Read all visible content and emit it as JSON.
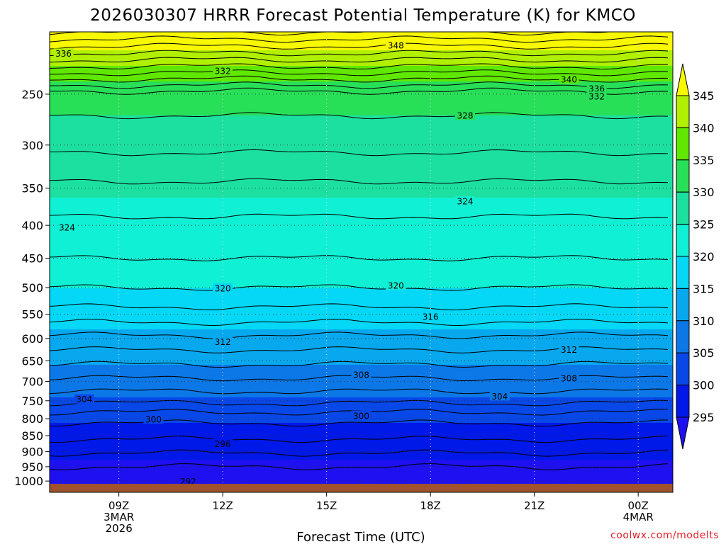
{
  "chart_data": {
    "type": "heatmap",
    "title": "2026030307 HRRR Forecast Potential Temperature (K) for KMCO",
    "xlabel": "Forecast Time (UTC)",
    "ylabel": "",
    "credit": "coolwx.com/modelts",
    "x_hours_range": [
      7,
      25
    ],
    "y_pressure_levels": [
      250,
      300,
      350,
      400,
      450,
      500,
      550,
      600,
      650,
      700,
      750,
      800,
      850,
      900,
      950,
      1000
    ],
    "y_range_hPa": [
      200,
      1015
    ],
    "x_ticks": [
      {
        "hour": 9,
        "lines": [
          "09Z",
          "3MAR",
          "2026"
        ]
      },
      {
        "hour": 12,
        "lines": [
          "12Z"
        ]
      },
      {
        "hour": 15,
        "lines": [
          "15Z"
        ]
      },
      {
        "hour": 18,
        "lines": [
          "18Z"
        ]
      },
      {
        "hour": 21,
        "lines": [
          "21Z"
        ]
      },
      {
        "hour": 24,
        "lines": [
          "00Z",
          "4MAR"
        ]
      }
    ],
    "colorbar": {
      "levels": [
        295,
        300,
        305,
        310,
        315,
        320,
        325,
        330,
        335,
        340,
        345
      ],
      "colors": [
        "#1e10f0",
        "#0018e8",
        "#0848e8",
        "#0c78e8",
        "#08a8ee",
        "#04d8f6",
        "#10f0d4",
        "#1ce0a0",
        "#28e058",
        "#60e800",
        "#b0f000",
        "#f8f800"
      ]
    },
    "theta_profile": [
      {
        "p": 200,
        "theta": 350
      },
      {
        "p": 250,
        "theta": 331
      },
      {
        "p": 300,
        "theta": 328.5
      },
      {
        "p": 350,
        "theta": 325.5
      },
      {
        "p": 400,
        "theta": 323.5
      },
      {
        "p": 450,
        "theta": 322
      },
      {
        "p": 500,
        "theta": 320
      },
      {
        "p": 550,
        "theta": 317.2
      },
      {
        "p": 600,
        "theta": 313.5
      },
      {
        "p": 650,
        "theta": 310.5
      },
      {
        "p": 700,
        "theta": 307.5
      },
      {
        "p": 750,
        "theta": 304.5
      },
      {
        "p": 800,
        "theta": 300.5
      },
      {
        "p": 850,
        "theta": 298.5
      },
      {
        "p": 900,
        "theta": 296.2
      },
      {
        "p": 950,
        "theta": 294
      },
      {
        "p": 1000,
        "theta": 292.5
      }
    ],
    "contour_labels": [
      {
        "text": "348",
        "hour": 17.0,
        "p": 210
      },
      {
        "text": "336",
        "hour": 7.4,
        "p": 216
      },
      {
        "text": "332",
        "hour": 12.0,
        "p": 230
      },
      {
        "text": "340",
        "hour": 22.0,
        "p": 237
      },
      {
        "text": "336",
        "hour": 22.8,
        "p": 245
      },
      {
        "text": "332",
        "hour": 22.8,
        "p": 252
      },
      {
        "text": "328",
        "hour": 19.0,
        "p": 270
      },
      {
        "text": "324",
        "hour": 19.0,
        "p": 367
      },
      {
        "text": "324",
        "hour": 7.5,
        "p": 403
      },
      {
        "text": "320",
        "hour": 12.0,
        "p": 501
      },
      {
        "text": "320",
        "hour": 17.0,
        "p": 496
      },
      {
        "text": "316",
        "hour": 18.0,
        "p": 555
      },
      {
        "text": "312",
        "hour": 12.0,
        "p": 607
      },
      {
        "text": "312",
        "hour": 22.0,
        "p": 624
      },
      {
        "text": "308",
        "hour": 16.0,
        "p": 683
      },
      {
        "text": "308",
        "hour": 22.0,
        "p": 692
      },
      {
        "text": "304",
        "hour": 8.0,
        "p": 746
      },
      {
        "text": "304",
        "hour": 20.0,
        "p": 738
      },
      {
        "text": "300",
        "hour": 10.0,
        "p": 802
      },
      {
        "text": "300",
        "hour": 16.0,
        "p": 791
      },
      {
        "text": "296",
        "hour": 12.0,
        "p": 875
      },
      {
        "text": "292",
        "hour": 11.0,
        "p": 1001
      }
    ]
  }
}
